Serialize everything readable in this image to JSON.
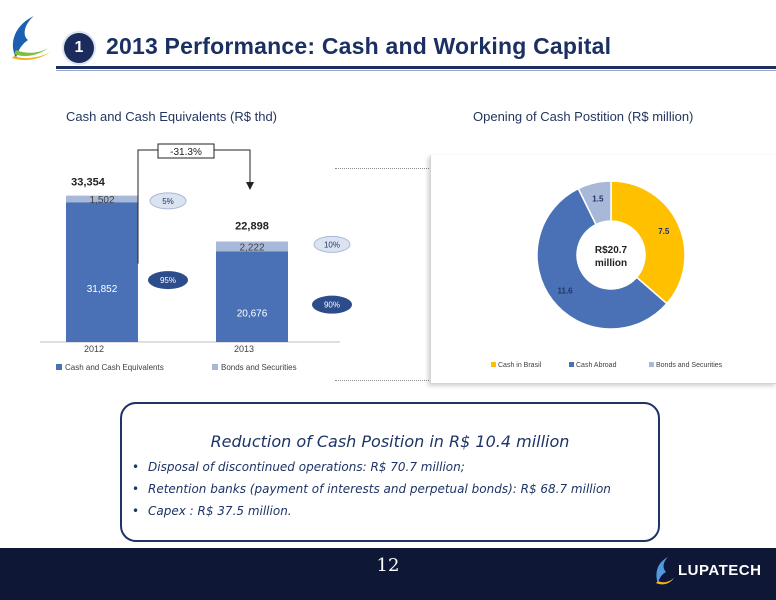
{
  "header": {
    "slide_number": "1",
    "title": "2013 Performance: Cash and Working Capital"
  },
  "left_chart_title": "Cash and Cash Equivalents (R$ thd)",
  "right_chart_title": "Opening of Cash Postition (R$ million)",
  "chart_data": [
    {
      "type": "bar",
      "stacked": true,
      "categories": [
        "2012",
        "2013"
      ],
      "series": [
        {
          "name": "Cash and Cash Equivalents",
          "values": [
            31852,
            20676
          ],
          "labels": [
            "31,852",
            "20,676"
          ],
          "share_labels": [
            "95%",
            "90%"
          ],
          "color": "#4a71b6"
        },
        {
          "name": "Bonds and Securities",
          "values": [
            1502,
            2222
          ],
          "labels": [
            "1,502",
            "2,222"
          ],
          "share_labels": [
            "5%",
            "10%"
          ],
          "color": "#a7b8d8"
        }
      ],
      "totals": [
        "33,354",
        "22,898"
      ],
      "change_label": "-31.3%",
      "ylim": [
        0,
        36000
      ]
    },
    {
      "type": "pie",
      "donut": true,
      "center_label": [
        "R$20.7",
        "million"
      ],
      "slices": [
        {
          "name": "Cash in Brasil",
          "value": 7.5,
          "label": "7.5",
          "color": "#ffc000"
        },
        {
          "name": "Cash Abroad",
          "value": 11.6,
          "label": "11.6",
          "color": "#4a71b6"
        },
        {
          "name": "Bonds and Securities",
          "value": 1.5,
          "label": "1.5",
          "color": "#a7b8d8"
        }
      ]
    }
  ],
  "callout": {
    "title": "Reduction of Cash Position in R$ 10.4 million",
    "bullets": [
      "Disposal of discontinued operations: R$ 70.7 million;",
      "Retention banks (payment of interests and perpetual bonds): R$ 68.7 million",
      "Capex : R$ 37.5 million."
    ]
  },
  "footer": {
    "page_number": "12",
    "brand": "LUPATECH"
  },
  "colors": {
    "navy": "#1b2f62",
    "bar_dark": "#4a71b6",
    "bar_light": "#a7b8d8",
    "gold": "#ffc000"
  }
}
